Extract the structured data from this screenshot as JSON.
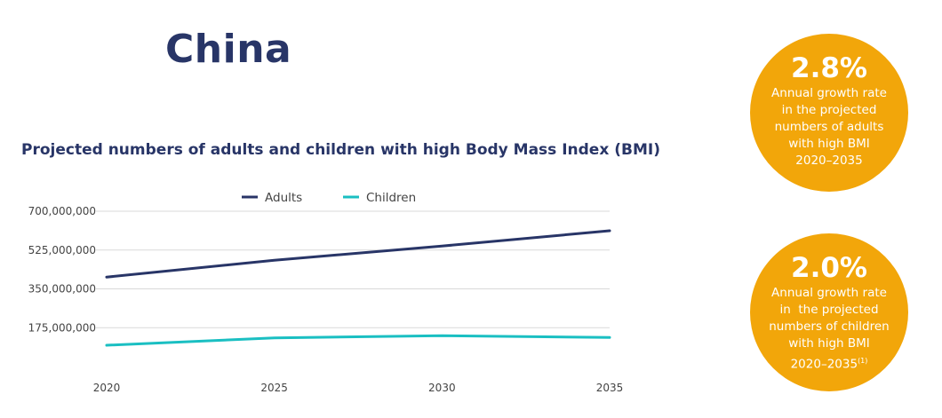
{
  "header": {
    "title": "China"
  },
  "chart_data": {
    "type": "line",
    "title": "Projected numbers of adults and children with high Body Mass Index (BMI)",
    "x": [
      2020,
      2025,
      2030,
      2035
    ],
    "x_tick_labels": [
      "2020",
      "2025",
      "2030",
      "2035"
    ],
    "y_tick_labels": [
      "175,000,000",
      "350,000,000",
      "525,000,000",
      "700,000,000"
    ],
    "y_ticks": [
      175000000,
      350000000,
      525000000,
      700000000
    ],
    "ylim": [
      0,
      700000000
    ],
    "grid": true,
    "legend_position": "top-center",
    "series": [
      {
        "name": "Adults",
        "color": "#283567",
        "values": [
          403000000,
          479000000,
          543000000,
          612000000
        ]
      },
      {
        "name": "Children",
        "color": "#1abfc2",
        "values": [
          96000000,
          129000000,
          139000000,
          131000000
        ]
      }
    ]
  },
  "stats": [
    {
      "percent": "2.8%",
      "lines": [
        "Annual growth rate",
        "in the projected",
        "numbers of adults",
        "with high BMI",
        "2020–2035"
      ],
      "footnote": ""
    },
    {
      "percent": "2.0%",
      "lines": [
        "Annual growth rate",
        "in  the projected",
        "numbers of children",
        "with high BMI",
        "2020–2035"
      ],
      "footnote": "(1)"
    }
  ],
  "colors": {
    "circle": "#f2a60a",
    "title": "#283567",
    "grid": "#d9d9d9"
  }
}
